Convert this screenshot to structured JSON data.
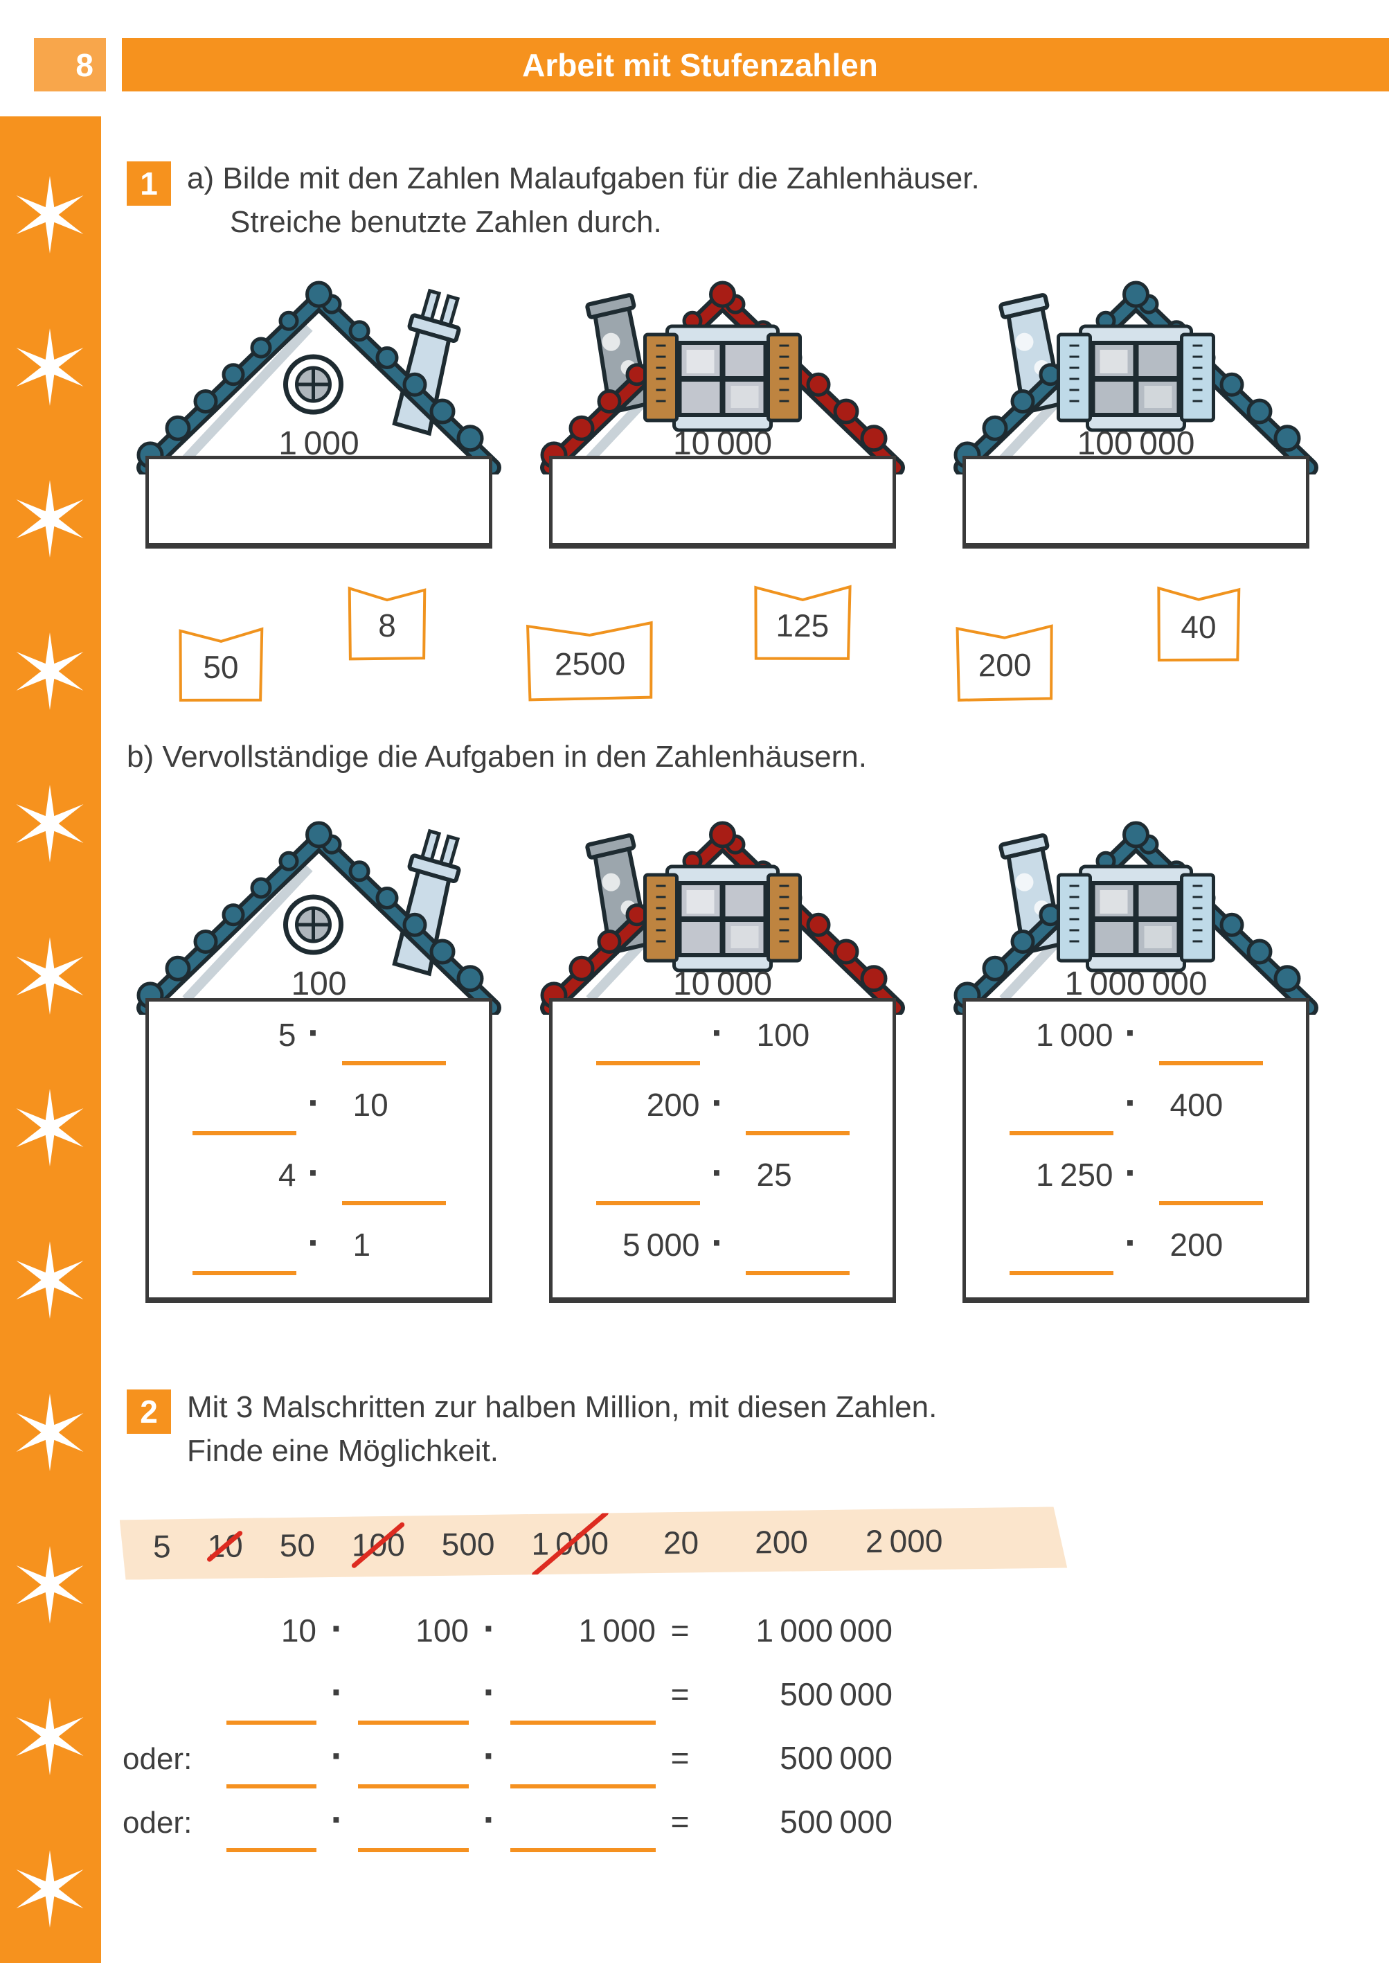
{
  "page": {
    "number": "8",
    "title": "Arbeit mit Stufenzahlen"
  },
  "colors": {
    "orange": "#F6921E",
    "orange_light": "#F8A64B",
    "underline_orange": "#F59120",
    "card_orange": "#F0931E",
    "peach_band": "#FBE5CC",
    "teal_roof": "#2F6C84",
    "red_roof": "#A81D15",
    "cross_red": "#DD2B20",
    "outline_dark": "#1E2B31",
    "text": "#3E3E3E",
    "box_border": "#3A3A3A"
  },
  "sidebar": {
    "star_count": 12
  },
  "task1": {
    "badge": "1",
    "line1": "a) Bilde mit den Zahlen Malaufgaben für die Zahlenhäuser.",
    "line2": "Streiche benutzte Zahlen durch."
  },
  "houses_a": [
    {
      "value": "1 000"
    },
    {
      "value": "10 000"
    },
    {
      "value": "100 000"
    }
  ],
  "cards": [
    {
      "value": "50"
    },
    {
      "value": "8"
    },
    {
      "value": "2500"
    },
    {
      "value": "125"
    },
    {
      "value": "200"
    },
    {
      "value": "40"
    }
  ],
  "part_b": {
    "label": "b) Vervollständige die Aufgaben in den Zahlenhäusern."
  },
  "houses_b": [
    {
      "value": "100",
      "rows": [
        {
          "left": "5",
          "right": ""
        },
        {
          "left": "",
          "right": "10"
        },
        {
          "left": "4",
          "right": ""
        },
        {
          "left": "",
          "right": "1"
        }
      ]
    },
    {
      "value": "10 000",
      "rows": [
        {
          "left": "",
          "right": "100"
        },
        {
          "left": "200",
          "right": ""
        },
        {
          "left": "",
          "right": "25"
        },
        {
          "left": "5 000",
          "right": ""
        }
      ]
    },
    {
      "value": "1 000 000",
      "rows": [
        {
          "left": "1 000",
          "right": ""
        },
        {
          "left": "",
          "right": "400"
        },
        {
          "left": "1 250",
          "right": ""
        },
        {
          "left": "",
          "right": "200"
        }
      ]
    }
  ],
  "task2": {
    "badge": "2",
    "line1": "Mit 3 Malschritten zur halben Million, mit diesen Zahlen.",
    "line2": "Finde eine Möglichkeit."
  },
  "strip": {
    "items": [
      {
        "value": "5",
        "crossed": false
      },
      {
        "value": "10",
        "crossed": true
      },
      {
        "value": "50",
        "crossed": false
      },
      {
        "value": "100",
        "crossed": true
      },
      {
        "value": "500",
        "crossed": false
      },
      {
        "value": "1 000",
        "crossed": true
      },
      {
        "value": "20",
        "crossed": false
      },
      {
        "value": "200",
        "crossed": false
      },
      {
        "value": "2 000",
        "crossed": false
      }
    ]
  },
  "equations": {
    "rows": [
      {
        "label": "",
        "f1": "10",
        "f2": "100",
        "f3": "1 000",
        "result": "1 000 000"
      },
      {
        "label": "",
        "f1": "",
        "f2": "",
        "f3": "",
        "result": "500 000"
      },
      {
        "label": "oder:",
        "f1": "",
        "f2": "",
        "f3": "",
        "result": "500 000"
      },
      {
        "label": "oder:",
        "f1": "",
        "f2": "",
        "f3": "",
        "result": "500 000"
      }
    ]
  },
  "icons": {
    "multiply_dot": "·",
    "equals": "=",
    "star": "sparkle-star"
  }
}
